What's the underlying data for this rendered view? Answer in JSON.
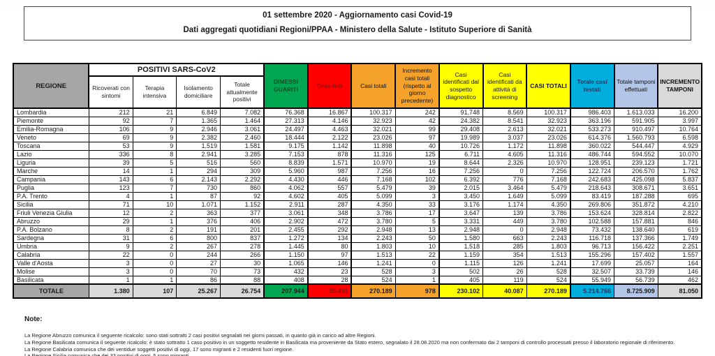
{
  "title": {
    "line1": "01 settembre 2020 - Aggiornamento casi Covid-19",
    "line2": "Dati aggregati quotidiani Regioni/PPAA - Ministero della Salute - Istituto Superiore di Sanità"
  },
  "table": {
    "region_header": "REGIONE",
    "group_header": "POSITIVI SARS-CoV2",
    "sub_headers": [
      "Ricoverati con sintomi",
      "Terapia intensiva",
      "Isolamento domiciliare",
      "Totale attualmente positivi"
    ],
    "col_headers": [
      "DIMESSI GUARITI",
      "Deceduti",
      "Casi totali",
      "Incremento casi totali (rispetto al giorno precedente)",
      "Casi identificati dal sospetto diagnostico",
      "Casi identificati da attività di screening",
      "CASI TOTALI",
      "Totale casi testati",
      "Totale tamponi effettuati",
      "INCREMENTO TAMPONI"
    ],
    "rows": [
      {
        "region": "Lombardia",
        "values": [
          "212",
          "21",
          "6.849",
          "7.082",
          "76.368",
          "16.867",
          "100.317",
          "242",
          "91.748",
          "8.569",
          "100.317",
          "986.403",
          "1.613.033",
          "16.200"
        ]
      },
      {
        "region": "Piemonte",
        "values": [
          "92",
          "7",
          "1.365",
          "1.464",
          "27.313",
          "4.146",
          "32.923",
          "42",
          "24.382",
          "8.541",
          "32.923",
          "363.196",
          "591.905",
          "3.997"
        ]
      },
      {
        "region": "Emilia-Romagna",
        "values": [
          "106",
          "9",
          "2.946",
          "3.061",
          "24.497",
          "4.463",
          "32.021",
          "99",
          "29.408",
          "2.613",
          "32.021",
          "533.273",
          "910.497",
          "10.764"
        ]
      },
      {
        "region": "Veneto",
        "values": [
          "69",
          "9",
          "2.382",
          "2.460",
          "18.444",
          "2.122",
          "23.026",
          "97",
          "19.989",
          "3.037",
          "23.026",
          "614.376",
          "1.560.793",
          "6.598"
        ]
      },
      {
        "region": "Toscana",
        "values": [
          "53",
          "9",
          "1.519",
          "1.581",
          "9.175",
          "1.142",
          "11.898",
          "40",
          "10.726",
          "1.172",
          "11.898",
          "360.022",
          "544.447",
          "4.929"
        ]
      },
      {
        "region": "Lazio",
        "values": [
          "336",
          "8",
          "2.941",
          "3.285",
          "7.153",
          "878",
          "11.316",
          "125",
          "6.711",
          "4.605",
          "11.316",
          "486.744",
          "594.552",
          "10.070"
        ]
      },
      {
        "region": "Liguria",
        "values": [
          "39",
          "5",
          "516",
          "560",
          "8.839",
          "1.571",
          "10.970",
          "19",
          "8.644",
          "2.326",
          "10.970",
          "128.951",
          "239.123",
          "1.721"
        ]
      },
      {
        "region": "Marche",
        "values": [
          "14",
          "1",
          "294",
          "309",
          "5.960",
          "987",
          "7.256",
          "16",
          "7.256",
          "0",
          "7.256",
          "122.724",
          "206.570",
          "1.762"
        ]
      },
      {
        "region": "Campania",
        "values": [
          "143",
          "6",
          "2.143",
          "2.292",
          "4.430",
          "446",
          "7.168",
          "102",
          "6.392",
          "776",
          "7.168",
          "242.683",
          "425.098",
          "5.837"
        ]
      },
      {
        "region": "Puglia",
        "values": [
          "123",
          "7",
          "730",
          "860",
          "4.062",
          "557",
          "5.479",
          "39",
          "2.015",
          "3.464",
          "5.479",
          "218.643",
          "308.671",
          "3.651"
        ]
      },
      {
        "region": "P.A. Trento",
        "values": [
          "4",
          "1",
          "87",
          "92",
          "4.602",
          "405",
          "5.099",
          "3",
          "3.450",
          "1.649",
          "5.099",
          "83.419",
          "187.288",
          "695"
        ]
      },
      {
        "region": "Sicilia",
        "values": [
          "71",
          "10",
          "1.071",
          "1.152",
          "2.911",
          "287",
          "4.350",
          "33",
          "3.176",
          "1.174",
          "4.350",
          "269.806",
          "351.872",
          "4.210"
        ]
      },
      {
        "region": "Friuli Venezia Giulia",
        "values": [
          "12",
          "2",
          "363",
          "377",
          "3.061",
          "348",
          "3.786",
          "17",
          "3.647",
          "139",
          "3.786",
          "153.624",
          "328.814",
          "2.822"
        ]
      },
      {
        "region": "Abruzzo",
        "values": [
          "29",
          "1",
          "376",
          "406",
          "2.902",
          "472",
          "3.780",
          "5",
          "3.331",
          "449",
          "3.780",
          "102.588",
          "157.881",
          "846"
        ]
      },
      {
        "region": "P.A. Bolzano",
        "values": [
          "8",
          "2",
          "191",
          "201",
          "2.455",
          "292",
          "2.948",
          "13",
          "2.948",
          "0",
          "2.948",
          "73.432",
          "138.640",
          "619"
        ]
      },
      {
        "region": "Sardegna",
        "values": [
          "31",
          "6",
          "800",
          "837",
          "1.272",
          "134",
          "2.243",
          "50",
          "1.580",
          "663",
          "2.243",
          "116.718",
          "137.366",
          "1.749"
        ]
      },
      {
        "region": "Umbria",
        "values": [
          "9",
          "2",
          "267",
          "278",
          "1.445",
          "80",
          "1.803",
          "10",
          "1.518",
          "285",
          "1.803",
          "96.713",
          "156.422",
          "2.251"
        ]
      },
      {
        "region": "Calabria",
        "values": [
          "22",
          "0",
          "244",
          "266",
          "1.150",
          "97",
          "1.513",
          "22",
          "1.159",
          "354",
          "1.513",
          "155.296",
          "157.402",
          "1.557"
        ]
      },
      {
        "region": "Valle d'Aosta",
        "values": [
          "3",
          "0",
          "27",
          "30",
          "1.065",
          "146",
          "1.241",
          "0",
          "1.115",
          "126",
          "1.241",
          "17.699",
          "25.057",
          "164"
        ]
      },
      {
        "region": "Molise",
        "values": [
          "3",
          "0",
          "70",
          "73",
          "432",
          "23",
          "528",
          "3",
          "502",
          "26",
          "528",
          "32.507",
          "33.739",
          "146"
        ]
      },
      {
        "region": "Basilicata",
        "values": [
          "1",
          "1",
          "86",
          "88",
          "408",
          "28",
          "524",
          "1",
          "405",
          "119",
          "524",
          "55.949",
          "56.739",
          "462"
        ]
      }
    ],
    "total": {
      "label": "TOTALE",
      "values": [
        "1.380",
        "107",
        "25.267",
        "26.754",
        "207.944",
        "35.491",
        "270.189",
        "978",
        "230.102",
        "40.087",
        "270.189",
        "5.214.766",
        "8.725.909",
        "81.050"
      ]
    }
  },
  "notes": {
    "label": "Note:",
    "lines": [
      "La Regione Abruzzo comunica il seguente ricalcolo:  sono stati sottratti 2 casi positivi segnalati nei giorni passati, in quanto già in carico ad altre Regioni.",
      "La Regione Basilicata comunica il seguente ricalcolo: è stato sottratto 1 caso positivo in un soggetto residente in Basilicata ma proveniente da Stato estero, segnalato il 28.08.2020 ma non confermato dai 2 tamponi di controllo processati presso il laboratorio regionale di riferimento.",
      "La Regione Calabria comunica che dei ventidue soggetti positivi di oggi, 17 sono migranti e 2 residenti fuori regione.",
      "La Regione Sicilia comunica che dei 33 positivi di oggi,  5 sono migranti"
    ]
  },
  "colors": {
    "green": "#00a650",
    "red": "#fe0000",
    "orange": "#f4a22b",
    "yellow": "#ffff00",
    "cyan": "#00aedd",
    "light_blue": "#b4c6e7",
    "gray_dark": "#a6a6a6",
    "gray_light": "#d9d9d9"
  }
}
